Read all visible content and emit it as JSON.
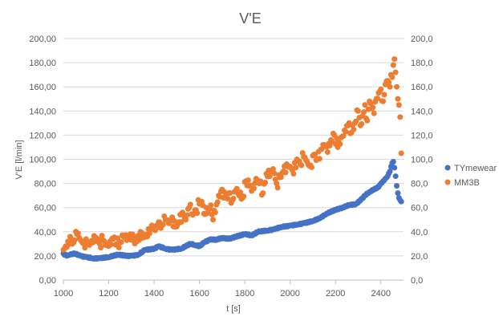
{
  "chart_data": {
    "type": "scatter",
    "title": "V'E",
    "xlabel": "t [s]",
    "ylabel": "V'E [l/min]",
    "xlim": [
      1000,
      2500
    ],
    "ylim": [
      0,
      200
    ],
    "y2lim": [
      0,
      200
    ],
    "x_ticks": [
      "1000",
      "1200",
      "1400",
      "1600",
      "1800",
      "2000",
      "2200",
      "2400"
    ],
    "y_ticks": [
      "0,00",
      "20,00",
      "40,00",
      "60,00",
      "80,00",
      "100,00",
      "120,00",
      "140,00",
      "160,00",
      "180,00",
      "200,00"
    ],
    "y2_ticks": [
      "0,0",
      "20,0",
      "40,0",
      "60,0",
      "80,0",
      "100,0",
      "120,0",
      "140,0",
      "160,0",
      "180,0",
      "200,0"
    ],
    "grid": "horizontal",
    "legend": "right",
    "series": [
      {
        "name": "TYmewear",
        "color": "#4472C4",
        "x": [
          1000,
          1015,
          1030,
          1050,
          1075,
          1100,
          1130,
          1160,
          1200,
          1240,
          1280,
          1300,
          1330,
          1360,
          1400,
          1420,
          1450,
          1480,
          1520,
          1540,
          1560,
          1580,
          1600,
          1620,
          1650,
          1670,
          1700,
          1730,
          1760,
          1800,
          1830,
          1860,
          1900,
          1930,
          1960,
          2000,
          2030,
          2060,
          2100,
          2130,
          2160,
          2200,
          2230,
          2260,
          2290,
          2310,
          2330,
          2350,
          2370,
          2390,
          2400,
          2410,
          2420,
          2430,
          2440,
          2445,
          2450,
          2455,
          2460,
          2465,
          2470,
          2475,
          2480,
          2490
        ],
        "y": [
          22,
          20,
          21,
          22,
          20,
          19,
          18,
          18,
          19,
          21,
          20,
          20,
          21,
          25,
          26,
          28,
          26,
          25,
          26,
          28,
          30,
          29,
          28,
          31,
          34,
          33,
          35,
          34,
          36,
          38,
          37,
          40,
          41,
          42,
          44,
          45,
          46,
          47,
          49,
          51,
          55,
          58,
          60,
          62,
          63,
          66,
          70,
          73,
          75,
          77,
          80,
          82,
          84,
          86,
          90,
          94,
          97,
          98,
          93,
          86,
          78,
          72,
          68,
          65
        ]
      },
      {
        "name": "MM3B",
        "color": "#ED7D31",
        "x": [
          1000,
          1010,
          1020,
          1030,
          1040,
          1050,
          1060,
          1070,
          1080,
          1090,
          1100,
          1115,
          1130,
          1145,
          1160,
          1175,
          1190,
          1205,
          1220,
          1235,
          1250,
          1265,
          1280,
          1295,
          1310,
          1325,
          1340,
          1355,
          1370,
          1385,
          1400,
          1410,
          1420,
          1430,
          1440,
          1450,
          1465,
          1480,
          1495,
          1510,
          1525,
          1540,
          1555,
          1570,
          1585,
          1600,
          1610,
          1620,
          1630,
          1640,
          1650,
          1660,
          1670,
          1685,
          1700,
          1715,
          1730,
          1745,
          1760,
          1775,
          1790,
          1805,
          1820,
          1835,
          1850,
          1865,
          1880,
          1895,
          1910,
          1925,
          1940,
          1955,
          1970,
          1985,
          2000,
          2015,
          2030,
          2045,
          2060,
          2075,
          2090,
          2105,
          2120,
          2135,
          2150,
          2165,
          2180,
          2195,
          2210,
          2225,
          2240,
          2255,
          2270,
          2285,
          2300,
          2310,
          2320,
          2330,
          2340,
          2350,
          2360,
          2370,
          2380,
          2390,
          2400,
          2410,
          2420,
          2430,
          2440,
          2445,
          2450,
          2455,
          2460,
          2465,
          2470,
          2475,
          2480,
          2485,
          2490
        ],
        "y": [
          25,
          28,
          32,
          36,
          30,
          33,
          38,
          35,
          32,
          30,
          34,
          29,
          31,
          35,
          30,
          33,
          29,
          32,
          34,
          30,
          31,
          36,
          33,
          38,
          35,
          32,
          40,
          37,
          36,
          42,
          44,
          45,
          48,
          43,
          46,
          50,
          47,
          52,
          44,
          48,
          56,
          50,
          60,
          54,
          58,
          63,
          65,
          55,
          60,
          58,
          62,
          50,
          56,
          70,
          75,
          68,
          72,
          66,
          74,
          70,
          68,
          82,
          78,
          76,
          84,
          80,
          72,
          88,
          86,
          92,
          80,
          85,
          90,
          96,
          94,
          88,
          100,
          96,
          102,
          98,
          95,
          104,
          100,
          108,
          112,
          106,
          116,
          120,
          110,
          118,
          124,
          128,
          122,
          130,
          140,
          128,
          136,
          145,
          132,
          148,
          142,
          138,
          150,
          155,
          158,
          148,
          162,
          165,
          160,
          170,
          168,
          178,
          183,
          172,
          160,
          150,
          145,
          135,
          105
        ]
      }
    ]
  }
}
